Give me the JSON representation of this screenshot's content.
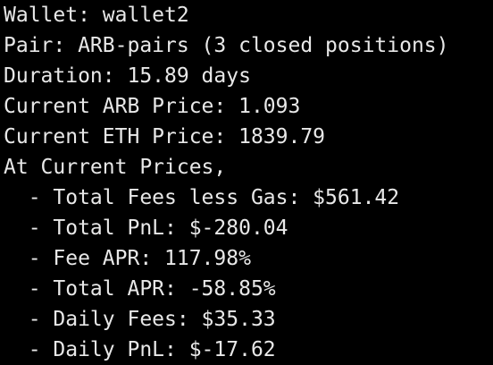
{
  "terminal": {
    "lines": [
      "Wallet: wallet2",
      "Pair: ARB-pairs (3 closed positions)",
      "Duration: 15.89 days",
      "Current ARB Price: 1.093",
      "Current ETH Price: 1839.79",
      "At Current Prices,",
      "  - Total Fees less Gas: $561.42",
      "  - Total PnL: $-280.04",
      "  - Fee APR: 117.98%",
      "  - Total APR: -58.85%",
      "  - Daily Fees: $35.33",
      "  - Daily PnL: $-17.62"
    ],
    "text_color": "#e8e8e8",
    "background_color": "#000000"
  }
}
